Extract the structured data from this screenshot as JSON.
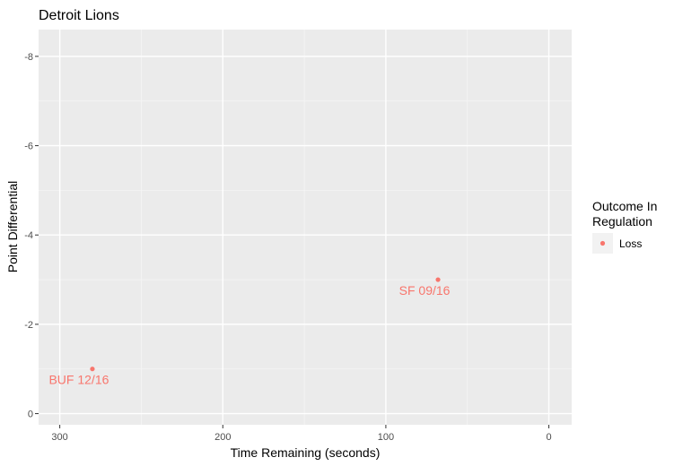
{
  "chart_data": {
    "type": "scatter",
    "title": "Detroit Lions",
    "xlabel": "Time Remaining (seconds)",
    "ylabel": "Point Differential",
    "x_reversed": true,
    "y_reversed": true,
    "xlim": [
      313,
      -14
    ],
    "ylim": [
      0.25,
      -8.6
    ],
    "x_ticks": [
      300,
      200,
      100,
      0
    ],
    "x_tick_labels": [
      "300",
      "200",
      "100",
      "0"
    ],
    "y_ticks": [
      -8,
      -6,
      -4,
      -2,
      0
    ],
    "y_tick_labels": [
      "-8",
      "-6",
      "-4",
      "-2",
      "0"
    ],
    "grid": true,
    "legend": {
      "title_lines": [
        "Outcome In",
        "Regulation"
      ],
      "placement": "right",
      "entries": [
        {
          "label": "Loss",
          "color": "#F8766D"
        }
      ]
    },
    "series": [
      {
        "name": "Loss",
        "color": "#F8766D",
        "points": [
          {
            "x": 280,
            "y": -1,
            "label": "BUF 12/16"
          },
          {
            "x": 68,
            "y": -3,
            "label": "SF 09/16"
          }
        ]
      }
    ]
  },
  "colors": {
    "panel_background": "#EBEBEB",
    "grid_major": "#FFFFFF",
    "grid_minor": "#F5F5F5",
    "loss": "#F8766D"
  }
}
